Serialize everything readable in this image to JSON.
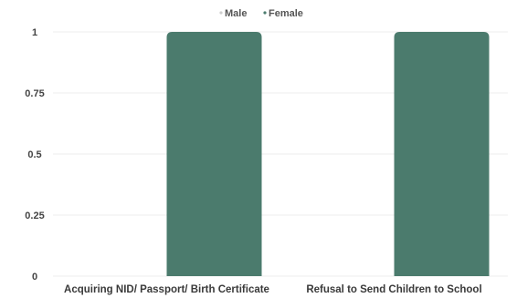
{
  "chart_data": {
    "type": "bar",
    "categories": [
      "Acquiring NID/ Passport/ Birth Certificate",
      "Refusal to Send Children to School"
    ],
    "series": [
      {
        "name": "Male",
        "values": [
          0,
          0
        ],
        "color": "#e5e5e5"
      },
      {
        "name": "Female",
        "values": [
          1,
          1
        ],
        "color": "#4b7b6d"
      }
    ],
    "y_ticks": [
      "0",
      "0.25",
      "0.5",
      "0.75",
      "1"
    ],
    "ylim": [
      0,
      1
    ],
    "grid": true,
    "legend_position": "top-center",
    "title": "",
    "xlabel": "",
    "ylabel": ""
  }
}
